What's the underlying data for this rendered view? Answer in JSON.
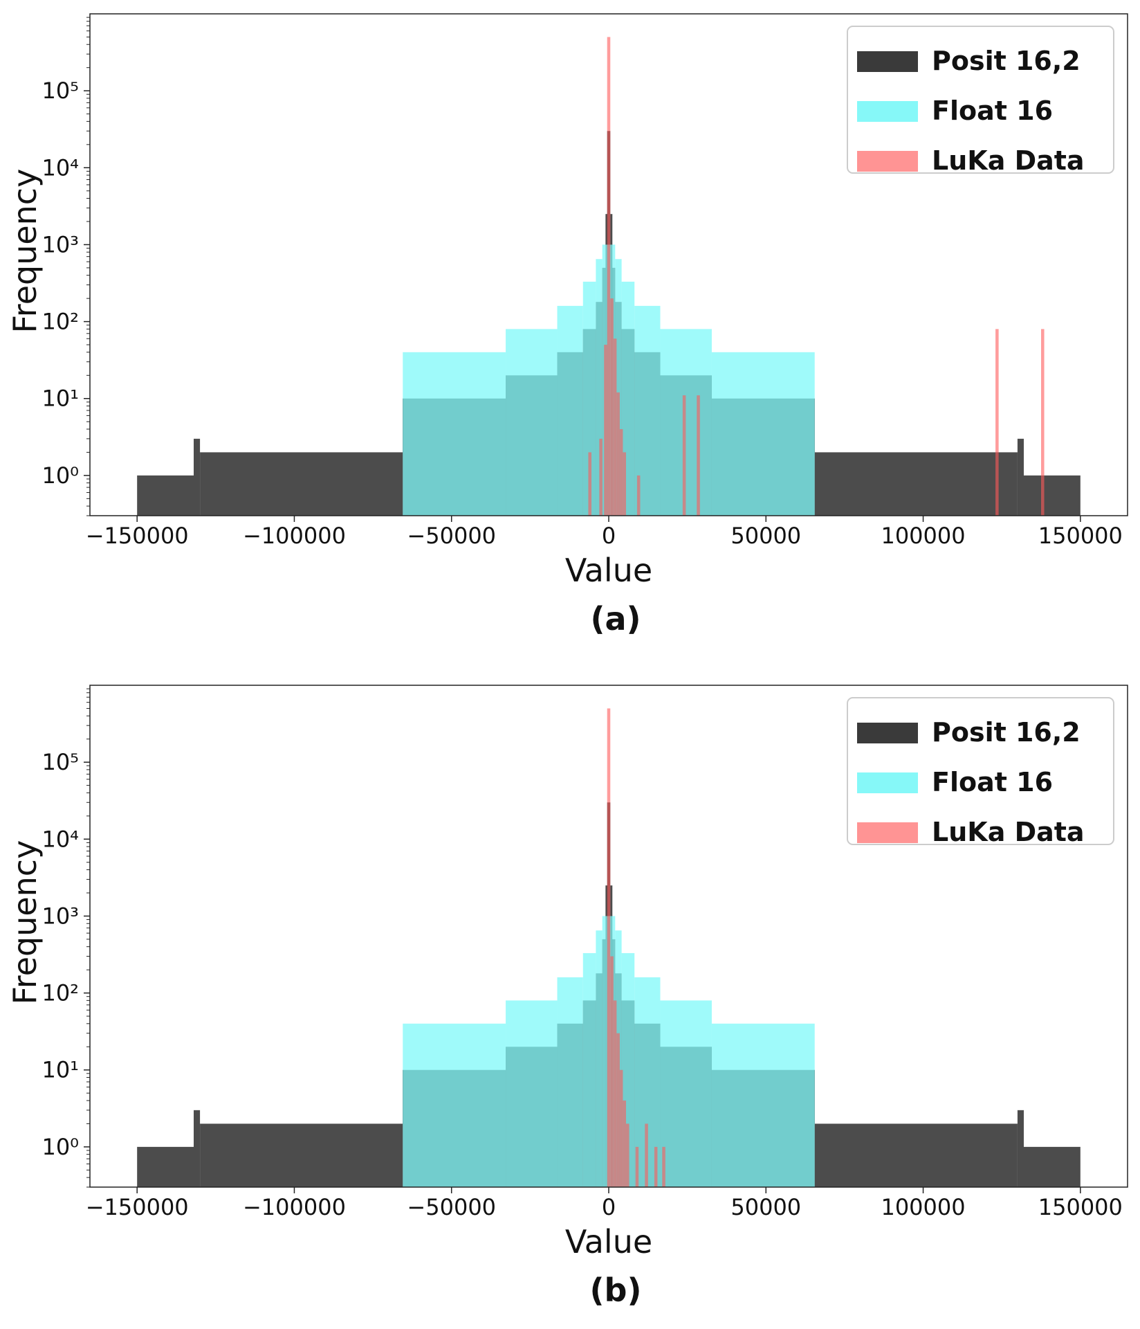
{
  "chart_data": [
    {
      "type": "bar",
      "caption": "(a)",
      "xlabel": "Value",
      "ylabel": "Frequency",
      "xlim": [
        -165000,
        165000
      ],
      "ylim": [
        0.3,
        1000000
      ],
      "yscale": "log",
      "xticks": [
        -150000,
        -100000,
        -50000,
        0,
        50000,
        100000,
        150000
      ],
      "xtick_labels": [
        "−150000",
        "−100000",
        "−50000",
        "0",
        "50000",
        "100000",
        "150000"
      ],
      "yticks": [
        1,
        10,
        100,
        1000,
        10000,
        100000
      ],
      "ytick_labels": [
        "10⁰",
        "10¹",
        "10²",
        "10³",
        "10⁴",
        "10⁵"
      ],
      "legend": {
        "position": "top-right",
        "entries": [
          {
            "label": "Posit 16,2",
            "color": "#2f2f2f"
          },
          {
            "label": "Float 16",
            "color": "#5ef5f5"
          },
          {
            "label": "LuKa Data",
            "color": "#ff6666"
          }
        ]
      },
      "series": [
        {
          "name": "Posit 16,2",
          "color": "#333333",
          "opacity": 0.88,
          "bins": [
            [
              -150000,
              -132000,
              1
            ],
            [
              -132000,
              -130000,
              3
            ],
            [
              -130000,
              -65536,
              2
            ],
            [
              -65536,
              -32768,
              10
            ],
            [
              -32768,
              -16384,
              20
            ],
            [
              -16384,
              -8192,
              40
            ],
            [
              -8192,
              -4096,
              80
            ],
            [
              -4096,
              -2048,
              180
            ],
            [
              -2048,
              -1024,
              500
            ],
            [
              -1024,
              -500,
              2500
            ],
            [
              -500,
              500,
              30000
            ],
            [
              500,
              1024,
              2500
            ],
            [
              1024,
              2048,
              500
            ],
            [
              2048,
              4096,
              180
            ],
            [
              4096,
              8192,
              80
            ],
            [
              8192,
              16384,
              40
            ],
            [
              16384,
              32768,
              20
            ],
            [
              32768,
              65536,
              10
            ],
            [
              65536,
              130000,
              2
            ],
            [
              130000,
              132000,
              3
            ],
            [
              132000,
              150000,
              1
            ]
          ]
        },
        {
          "name": "Float 16",
          "color": "#7ff8f8",
          "opacity": 0.75,
          "bins": [
            [
              -65504,
              -32768,
              40
            ],
            [
              -32768,
              -16384,
              80
            ],
            [
              -16384,
              -8192,
              160
            ],
            [
              -8192,
              -4096,
              330
            ],
            [
              -4096,
              -2048,
              650
            ],
            [
              -2048,
              -1024,
              1000
            ],
            [
              -1024,
              1024,
              1000
            ],
            [
              1024,
              2048,
              1000
            ],
            [
              2048,
              4096,
              650
            ],
            [
              4096,
              8192,
              330
            ],
            [
              8192,
              16384,
              160
            ],
            [
              16384,
              32768,
              80
            ],
            [
              32768,
              65504,
              40
            ]
          ]
        },
        {
          "name": "LuKa Data",
          "color": "#ff5a5a",
          "opacity": 0.6,
          "bins": [
            [
              -6500,
              -5500,
              2
            ],
            [
              -3000,
              -2000,
              3
            ],
            [
              -1500,
              -500,
              50
            ],
            [
              -500,
              500,
              500000
            ],
            [
              500,
              1500,
              200
            ],
            [
              1500,
              2500,
              60
            ],
            [
              2500,
              3500,
              12
            ],
            [
              3500,
              4500,
              4
            ],
            [
              4500,
              5500,
              2
            ],
            [
              9000,
              10000,
              1
            ],
            [
              23500,
              24500,
              11
            ],
            [
              28000,
              29000,
              11
            ],
            [
              123000,
              124000,
              80
            ],
            [
              137500,
              138500,
              80
            ]
          ]
        }
      ]
    },
    {
      "type": "bar",
      "caption": "(b)",
      "xlabel": "Value",
      "ylabel": "Frequency",
      "xlim": [
        -165000,
        165000
      ],
      "ylim": [
        0.3,
        1000000
      ],
      "yscale": "log",
      "xticks": [
        -150000,
        -100000,
        -50000,
        0,
        50000,
        100000,
        150000
      ],
      "xtick_labels": [
        "−150000",
        "−100000",
        "−50000",
        "0",
        "50000",
        "100000",
        "150000"
      ],
      "yticks": [
        1,
        10,
        100,
        1000,
        10000,
        100000
      ],
      "ytick_labels": [
        "10⁰",
        "10¹",
        "10²",
        "10³",
        "10⁴",
        "10⁵"
      ],
      "legend": {
        "position": "top-right",
        "entries": [
          {
            "label": "Posit 16,2",
            "color": "#2f2f2f"
          },
          {
            "label": "Float 16",
            "color": "#5ef5f5"
          },
          {
            "label": "LuKa Data",
            "color": "#ff6666"
          }
        ]
      },
      "series": [
        {
          "name": "Posit 16,2",
          "color": "#333333",
          "opacity": 0.88,
          "bins": [
            [
              -150000,
              -132000,
              1
            ],
            [
              -132000,
              -130000,
              3
            ],
            [
              -130000,
              -65536,
              2
            ],
            [
              -65536,
              -32768,
              10
            ],
            [
              -32768,
              -16384,
              20
            ],
            [
              -16384,
              -8192,
              40
            ],
            [
              -8192,
              -4096,
              80
            ],
            [
              -4096,
              -2048,
              180
            ],
            [
              -2048,
              -1024,
              500
            ],
            [
              -1024,
              -500,
              2500
            ],
            [
              -500,
              500,
              30000
            ],
            [
              500,
              1024,
              2500
            ],
            [
              1024,
              2048,
              500
            ],
            [
              2048,
              4096,
              180
            ],
            [
              4096,
              8192,
              80
            ],
            [
              8192,
              16384,
              40
            ],
            [
              16384,
              32768,
              20
            ],
            [
              32768,
              65536,
              10
            ],
            [
              65536,
              130000,
              2
            ],
            [
              130000,
              132000,
              3
            ],
            [
              132000,
              150000,
              1
            ]
          ]
        },
        {
          "name": "Float 16",
          "color": "#7ff8f8",
          "opacity": 0.75,
          "bins": [
            [
              -65504,
              -32768,
              40
            ],
            [
              -32768,
              -16384,
              80
            ],
            [
              -16384,
              -8192,
              160
            ],
            [
              -8192,
              -4096,
              330
            ],
            [
              -4096,
              -2048,
              650
            ],
            [
              -2048,
              -1024,
              1000
            ],
            [
              -1024,
              1024,
              1000
            ],
            [
              1024,
              2048,
              1000
            ],
            [
              2048,
              4096,
              650
            ],
            [
              4096,
              8192,
              330
            ],
            [
              8192,
              16384,
              160
            ],
            [
              16384,
              32768,
              80
            ],
            [
              32768,
              65504,
              40
            ]
          ]
        },
        {
          "name": "LuKa Data",
          "color": "#ff5a5a",
          "opacity": 0.6,
          "bins": [
            [
              -500,
              500,
              500000
            ],
            [
              500,
              1500,
              300
            ],
            [
              1500,
              2500,
              80
            ],
            [
              2500,
              3500,
              30
            ],
            [
              3500,
              4500,
              10
            ],
            [
              4500,
              5500,
              4
            ],
            [
              5500,
              6500,
              2
            ],
            [
              8500,
              9500,
              1
            ],
            [
              11500,
              12500,
              2
            ],
            [
              14500,
              15500,
              1
            ],
            [
              17000,
              18000,
              1
            ]
          ]
        }
      ]
    }
  ]
}
